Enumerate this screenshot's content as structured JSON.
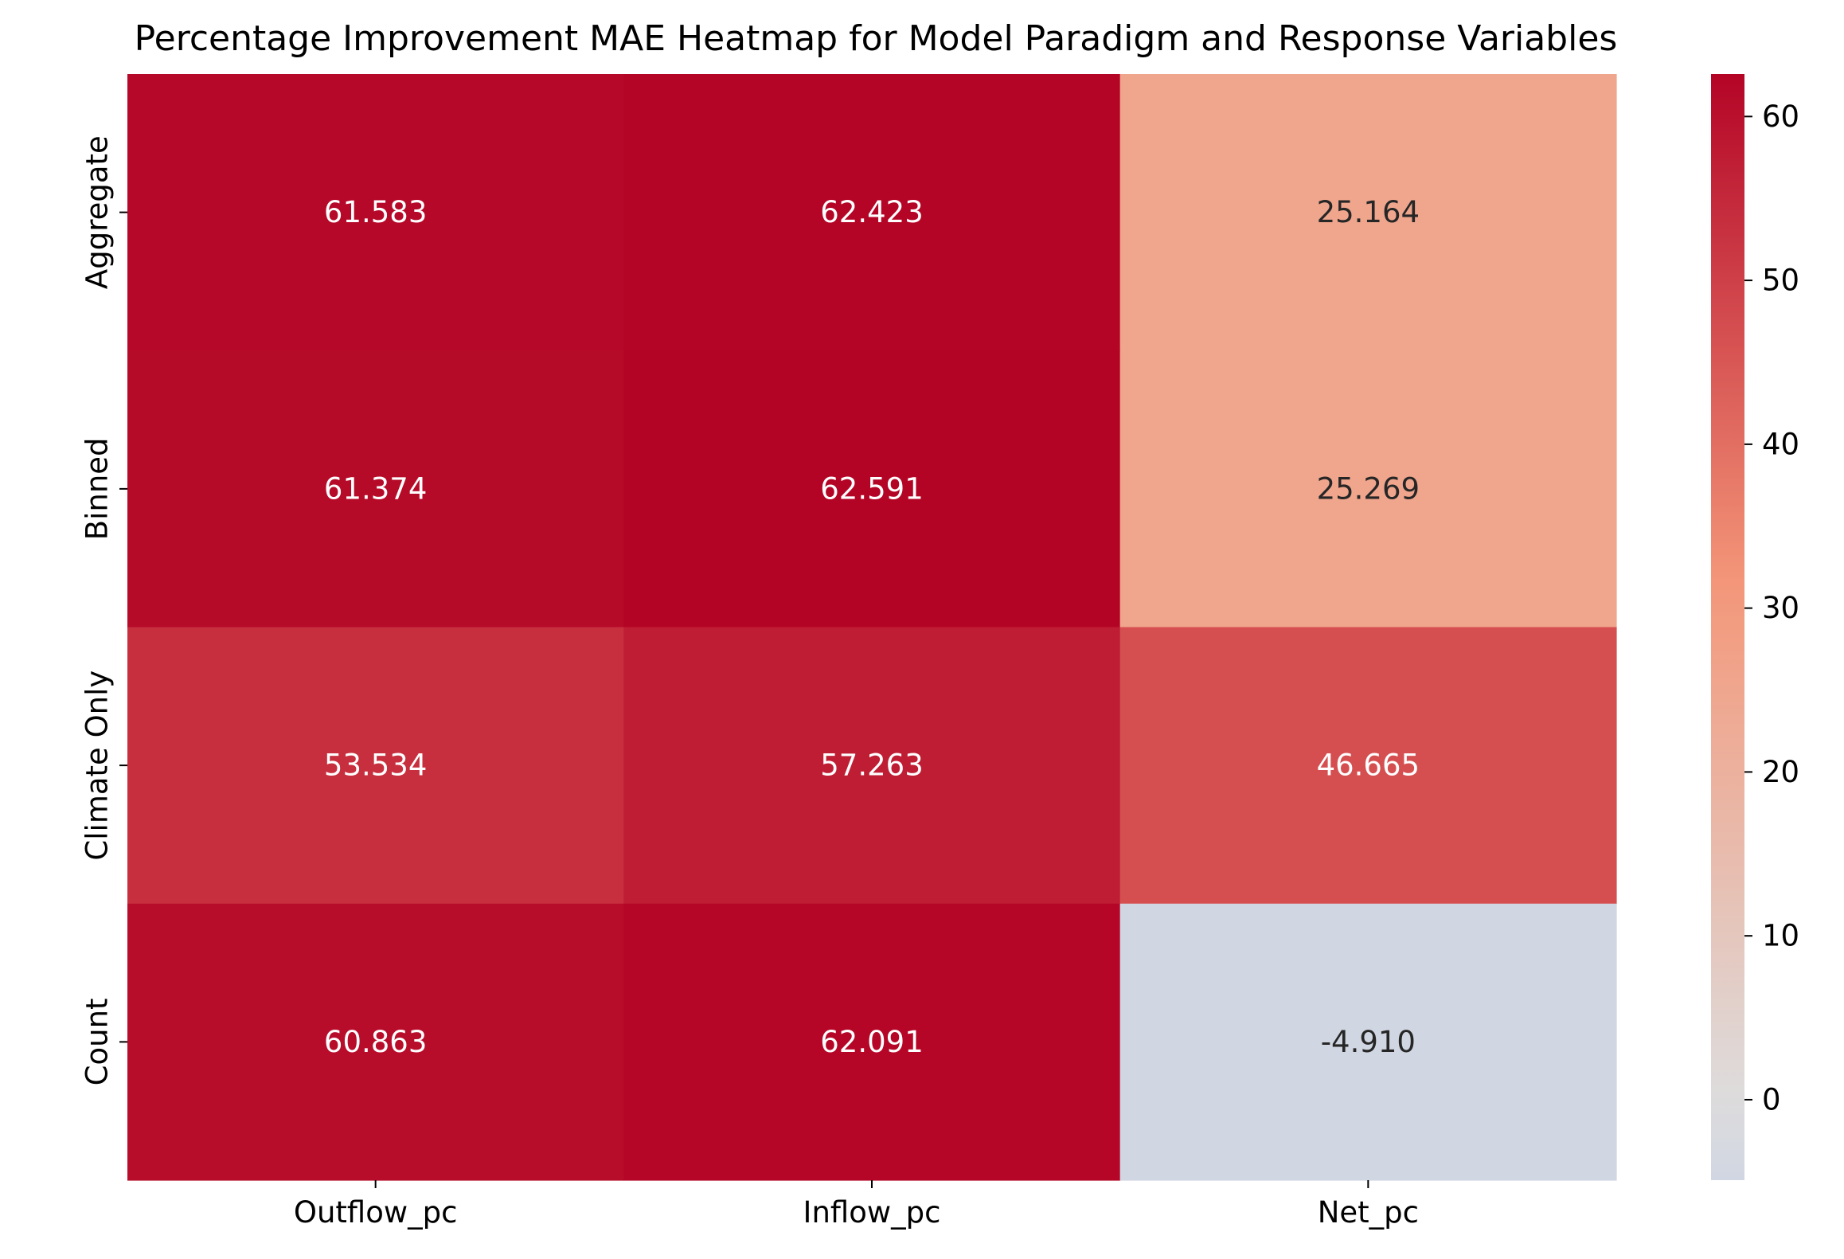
{
  "chart_data": {
    "type": "heatmap",
    "title": "Percentage Improvement MAE Heatmap for Model Paradigm and Response Variables",
    "xlabel": "",
    "ylabel": "",
    "x_categories": [
      "Outflow_pc",
      "Inflow_pc",
      "Net_pc"
    ],
    "y_categories": [
      "Aggregate",
      "Binned",
      "Climate Only",
      "Count"
    ],
    "values": [
      [
        61.583,
        62.423,
        25.164
      ],
      [
        61.374,
        62.591,
        25.269
      ],
      [
        53.534,
        57.263,
        46.665
      ],
      [
        60.863,
        62.091,
        -4.91
      ]
    ],
    "value_labels": [
      [
        "61.583",
        "62.423",
        "25.164"
      ],
      [
        "61.374",
        "62.591",
        "25.269"
      ],
      [
        "53.534",
        "57.263",
        "46.665"
      ],
      [
        "60.863",
        "62.091",
        "-4.910"
      ]
    ],
    "colormap": "coolwarm-diverging",
    "colorbar": {
      "range": [
        -4.91,
        62.591
      ],
      "center": 0,
      "ticks": [
        0,
        10,
        20,
        30,
        40,
        50,
        60
      ],
      "tick_labels": [
        "0",
        "10",
        "20",
        "30",
        "40",
        "50",
        "60"
      ]
    },
    "annotation_text_colors": {
      "light": "#ffffff",
      "dark": "#262626"
    },
    "grid": false,
    "legend": "colorbar-right"
  }
}
